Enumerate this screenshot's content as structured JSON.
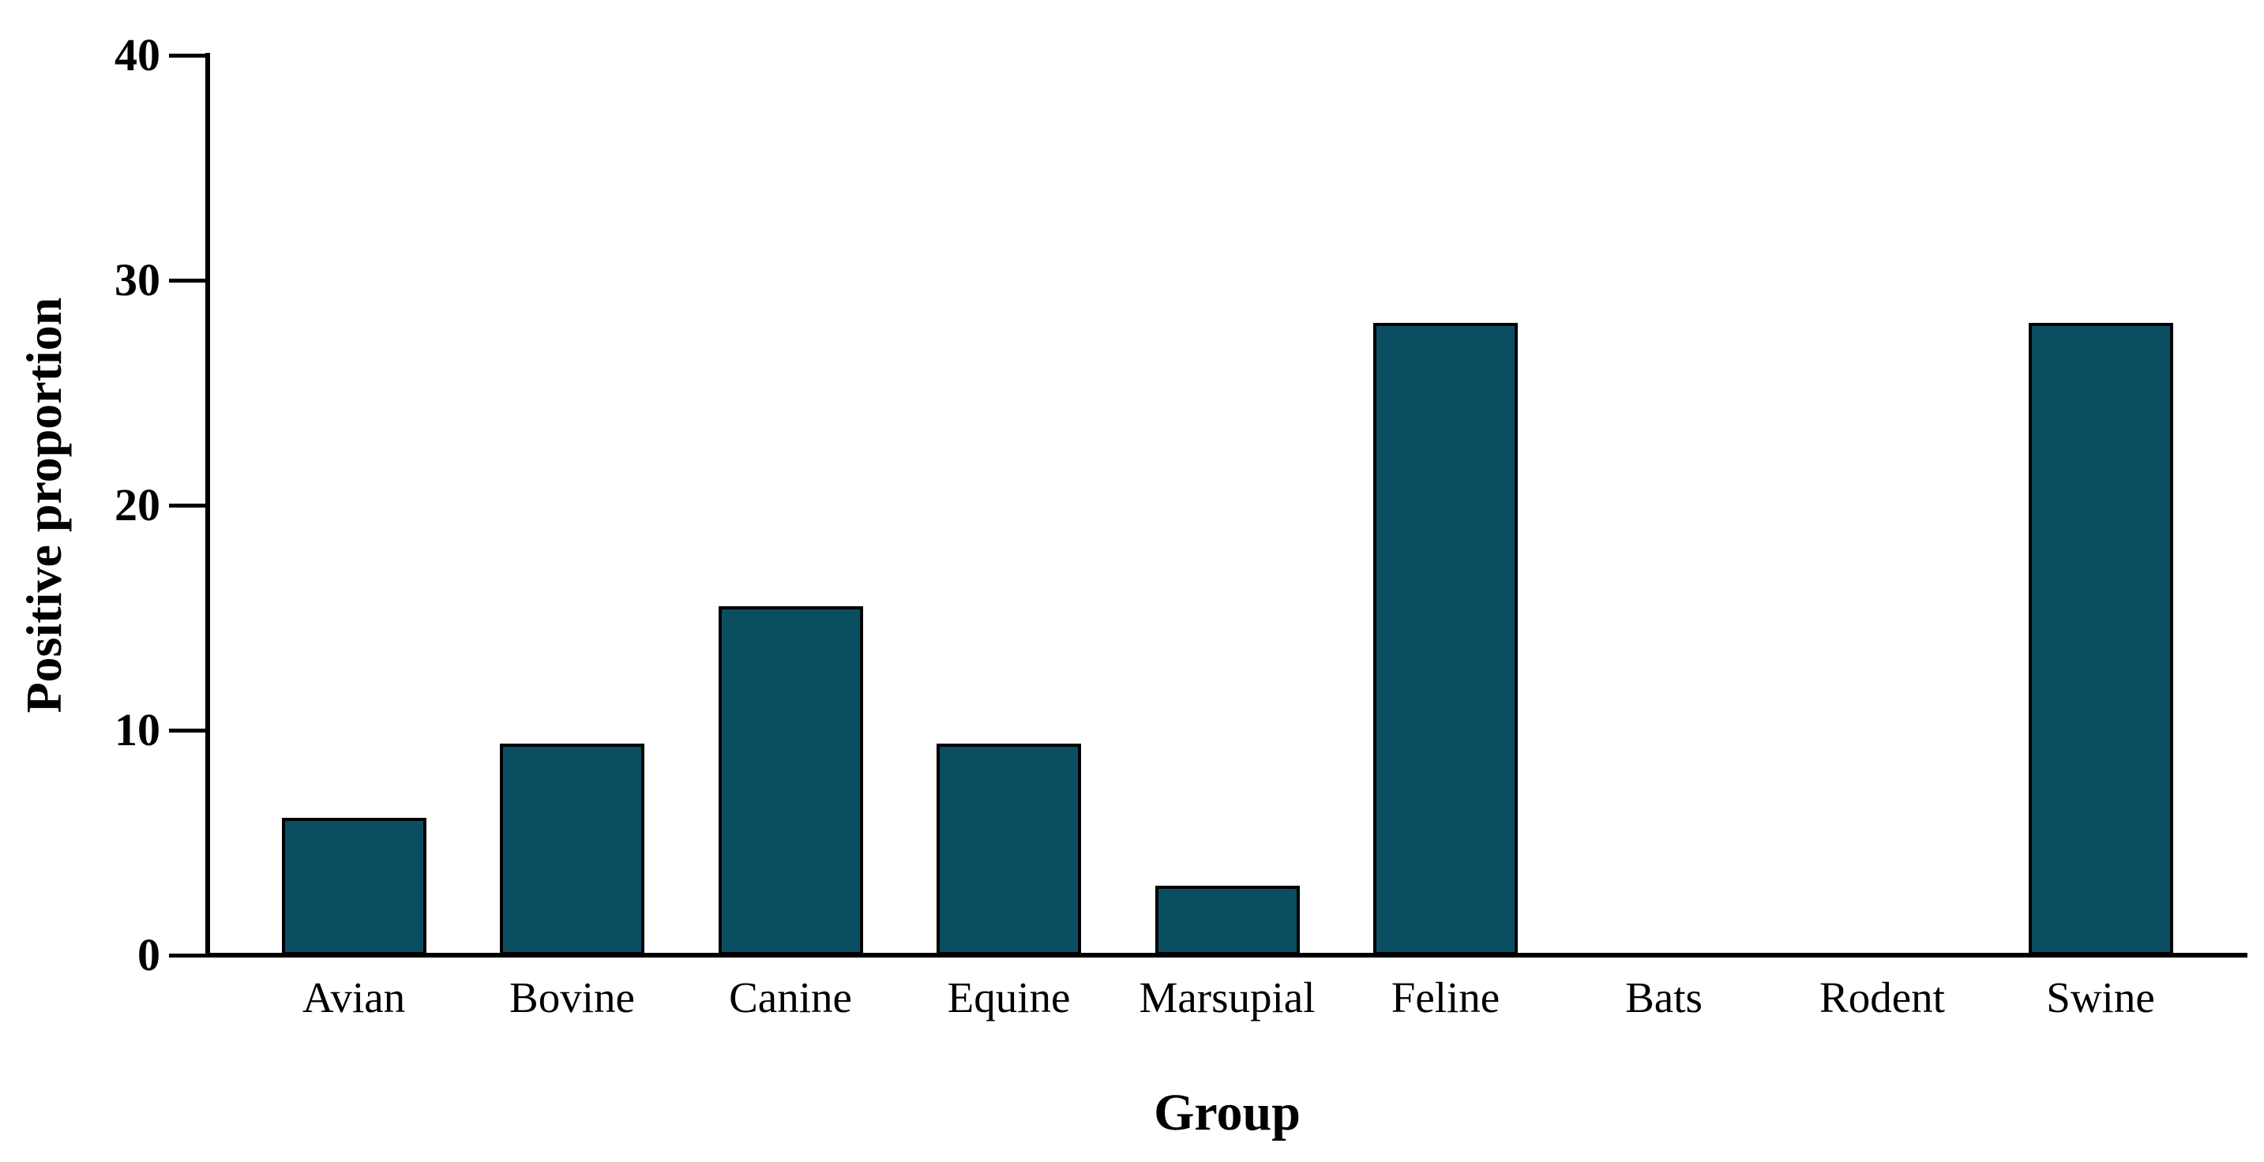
{
  "chart_data": {
    "type": "bar",
    "title": "",
    "xlabel": "Group",
    "ylabel": "Positive proportion",
    "categories": [
      "Avian",
      "Bovine",
      "Canine",
      "Equine",
      "Marsupial",
      "Feline",
      "Bats",
      "Rodent",
      "Swine"
    ],
    "values": [
      6.1,
      9.4,
      15.5,
      9.4,
      3.1,
      28.1,
      0,
      0,
      28.1
    ],
    "ylim": [
      0,
      40
    ],
    "yticks": [
      0,
      10,
      20,
      30,
      40
    ],
    "grid": false,
    "legend": "none",
    "colors": {
      "bar_fill": "#0A4E62",
      "bar_border": "#000000",
      "axis": "#000000",
      "background": "#FFFFFF"
    }
  }
}
